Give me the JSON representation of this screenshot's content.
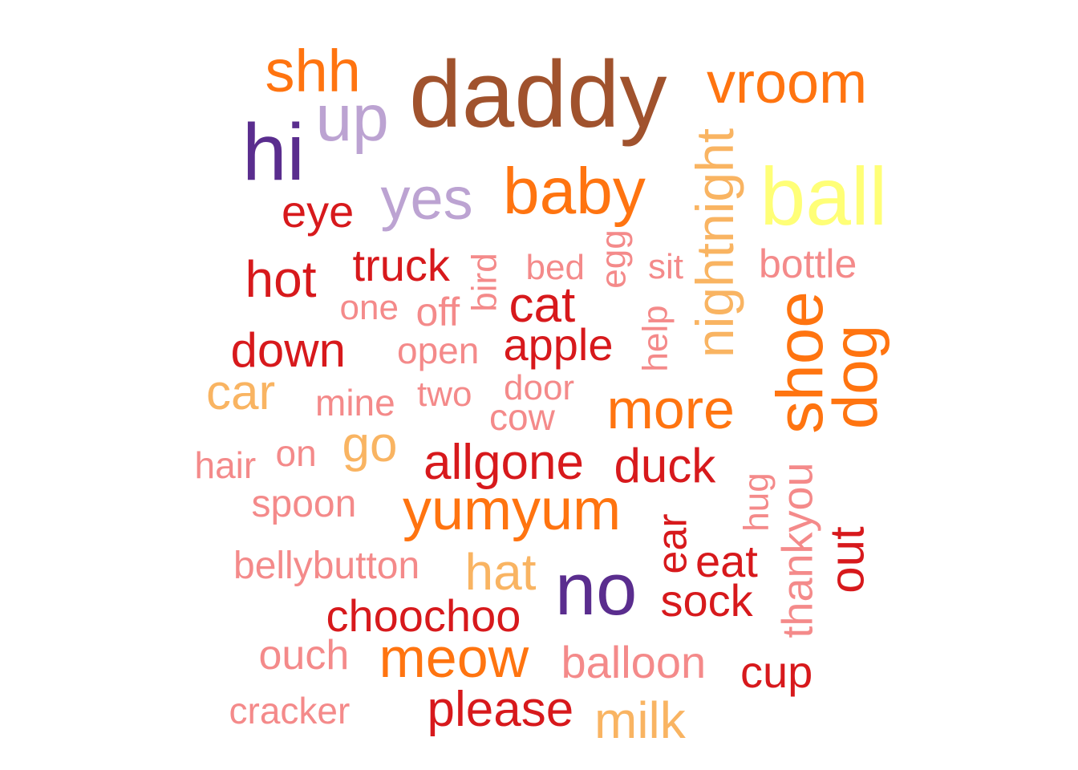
{
  "palette": {
    "brown": "#a0522d",
    "orange": "#ff7410",
    "red": "#d7191c",
    "pink": "#f48a8a",
    "light_orange": "#f9b462",
    "yellow": "#ffff77",
    "purple": "#5a2d8e",
    "lavender": "#bca3d2"
  },
  "words": [
    {
      "text": "daddy",
      "color": "brown",
      "vertical": false
    },
    {
      "text": "shh",
      "color": "orange",
      "vertical": false
    },
    {
      "text": "vroom",
      "color": "orange",
      "vertical": false
    },
    {
      "text": "up",
      "color": "lavender",
      "vertical": false
    },
    {
      "text": "hi",
      "color": "purple",
      "vertical": false
    },
    {
      "text": "baby",
      "color": "orange",
      "vertical": false
    },
    {
      "text": "yes",
      "color": "lavender",
      "vertical": false
    },
    {
      "text": "eye",
      "color": "red",
      "vertical": false
    },
    {
      "text": "nightnight",
      "color": "light_orange",
      "vertical": true
    },
    {
      "text": "ball",
      "color": "yellow",
      "vertical": false
    },
    {
      "text": "egg",
      "color": "pink",
      "vertical": true
    },
    {
      "text": "bird",
      "color": "pink",
      "vertical": true
    },
    {
      "text": "truck",
      "color": "red",
      "vertical": false
    },
    {
      "text": "bed",
      "color": "pink",
      "vertical": false
    },
    {
      "text": "sit",
      "color": "pink",
      "vertical": false
    },
    {
      "text": "bottle",
      "color": "pink",
      "vertical": false
    },
    {
      "text": "hot",
      "color": "red",
      "vertical": false
    },
    {
      "text": "one",
      "color": "pink",
      "vertical": false
    },
    {
      "text": "off",
      "color": "pink",
      "vertical": false
    },
    {
      "text": "cat",
      "color": "red",
      "vertical": false
    },
    {
      "text": "help",
      "color": "pink",
      "vertical": true
    },
    {
      "text": "shoe",
      "color": "orange",
      "vertical": true
    },
    {
      "text": "dog",
      "color": "orange",
      "vertical": true
    },
    {
      "text": "down",
      "color": "red",
      "vertical": false
    },
    {
      "text": "open",
      "color": "pink",
      "vertical": false
    },
    {
      "text": "apple",
      "color": "red",
      "vertical": false
    },
    {
      "text": "car",
      "color": "light_orange",
      "vertical": false
    },
    {
      "text": "mine",
      "color": "pink",
      "vertical": false
    },
    {
      "text": "two",
      "color": "pink",
      "vertical": false
    },
    {
      "text": "door",
      "color": "pink",
      "vertical": false
    },
    {
      "text": "cow",
      "color": "pink",
      "vertical": false
    },
    {
      "text": "more",
      "color": "orange",
      "vertical": false
    },
    {
      "text": "hair",
      "color": "pink",
      "vertical": false
    },
    {
      "text": "on",
      "color": "pink",
      "vertical": false
    },
    {
      "text": "go",
      "color": "light_orange",
      "vertical": false
    },
    {
      "text": "allgone",
      "color": "red",
      "vertical": false
    },
    {
      "text": "duck",
      "color": "red",
      "vertical": false
    },
    {
      "text": "hug",
      "color": "pink",
      "vertical": true
    },
    {
      "text": "thankyou",
      "color": "pink",
      "vertical": true
    },
    {
      "text": "spoon",
      "color": "pink",
      "vertical": false
    },
    {
      "text": "yumyum",
      "color": "orange",
      "vertical": false
    },
    {
      "text": "ear",
      "color": "red",
      "vertical": true
    },
    {
      "text": "out",
      "color": "red",
      "vertical": true
    },
    {
      "text": "bellybutton",
      "color": "pink",
      "vertical": false
    },
    {
      "text": "hat",
      "color": "light_orange",
      "vertical": false
    },
    {
      "text": "no",
      "color": "purple",
      "vertical": false
    },
    {
      "text": "eat",
      "color": "red",
      "vertical": false
    },
    {
      "text": "sock",
      "color": "red",
      "vertical": false
    },
    {
      "text": "choochoo",
      "color": "red",
      "vertical": false
    },
    {
      "text": "ouch",
      "color": "pink",
      "vertical": false
    },
    {
      "text": "meow",
      "color": "orange",
      "vertical": false
    },
    {
      "text": "balloon",
      "color": "pink",
      "vertical": false
    },
    {
      "text": "cup",
      "color": "red",
      "vertical": false
    },
    {
      "text": "cracker",
      "color": "pink",
      "vertical": false
    },
    {
      "text": "please",
      "color": "red",
      "vertical": false
    },
    {
      "text": "milk",
      "color": "light_orange",
      "vertical": false
    }
  ]
}
